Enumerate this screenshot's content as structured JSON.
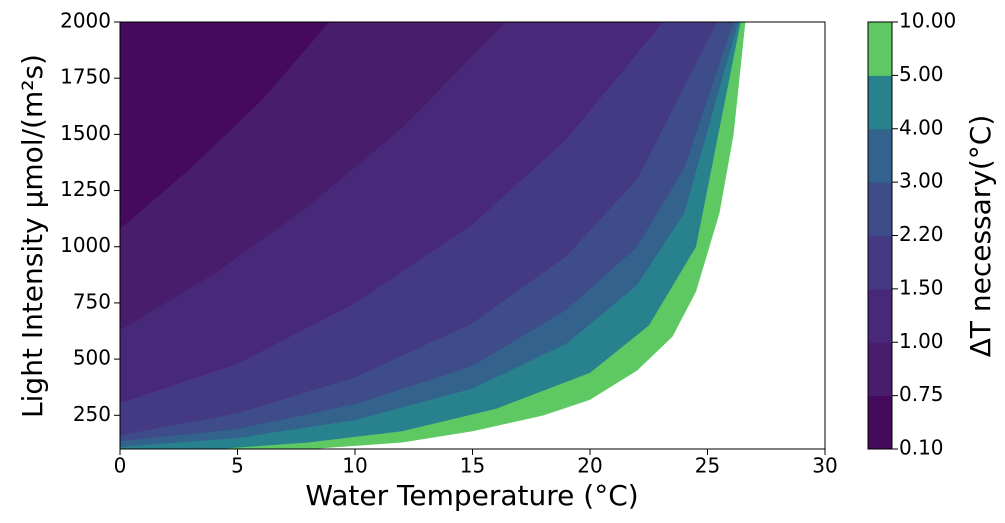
{
  "chart_data": {
    "type": "contour",
    "xlabel": "Water Temperature (°C)",
    "ylabel": "Light Intensity μmol/(m²s)",
    "xlim": [
      0,
      30
    ],
    "ylim": [
      100,
      2000
    ],
    "xticks": [
      0,
      5,
      10,
      15,
      20,
      25,
      30
    ],
    "yticks": [
      250,
      500,
      750,
      1000,
      1250,
      1500,
      1750,
      2000
    ],
    "colorbar": {
      "label": "ΔT necessary(°C)",
      "levels": [
        {
          "value": 0.1,
          "label": "0.10"
        },
        {
          "value": 0.75,
          "label": "0.75"
        },
        {
          "value": 1,
          "label": "1.00"
        },
        {
          "value": 1.5,
          "label": "1.50"
        },
        {
          "value": 2.2,
          "label": "2.20"
        },
        {
          "value": 3,
          "label": "3.00"
        },
        {
          "value": 4,
          "label": "4.00"
        },
        {
          "value": 5,
          "label": "5.00"
        },
        {
          "value": 10,
          "label": "10.00"
        }
      ],
      "colors": [
        "#450a5c",
        "#471d6c",
        "#482878",
        "#443a83",
        "#3e4c8a",
        "#33638d",
        "#27828e",
        "#5ec962"
      ]
    },
    "region_edge": {
      "x": [
        8,
        12,
        15,
        18,
        20,
        22,
        23.5,
        24.5,
        25.5,
        26.1,
        26.6
      ],
      "y": [
        100,
        130,
        180,
        250,
        320,
        450,
        600,
        800,
        1150,
        1500,
        2000
      ]
    },
    "contours": [
      {
        "x": [
          0,
          3,
          6,
          8.9
        ],
        "y": [
          1080,
          1350,
          1650,
          2000
        ]
      },
      {
        "x": [
          0,
          4,
          8,
          12,
          16.4
        ],
        "y": [
          630,
          880,
          1180,
          1530,
          2000
        ]
      },
      {
        "x": [
          0,
          5,
          10,
          15,
          19,
          23.1
        ],
        "y": [
          305,
          480,
          750,
          1100,
          1480,
          2000
        ]
      },
      {
        "x": [
          0,
          5,
          10,
          15,
          19,
          22,
          25.4
        ],
        "y": [
          162,
          260,
          420,
          660,
          960,
          1300,
          2000
        ]
      },
      {
        "x": [
          0,
          5,
          10,
          15,
          19,
          22,
          24,
          26.1
        ],
        "y": [
          135,
          190,
          300,
          470,
          720,
          1000,
          1350,
          2000
        ]
      },
      {
        "x": [
          0,
          5,
          10,
          15,
          19,
          22,
          24,
          26.3
        ],
        "y": [
          110,
          150,
          230,
          370,
          570,
          830,
          1150,
          2000
        ]
      },
      {
        "x": [
          4,
          8,
          12,
          16,
          20,
          22.5,
          24.5,
          26.4
        ],
        "y": [
          100,
          130,
          180,
          280,
          440,
          650,
          1000,
          2000
        ]
      }
    ]
  }
}
